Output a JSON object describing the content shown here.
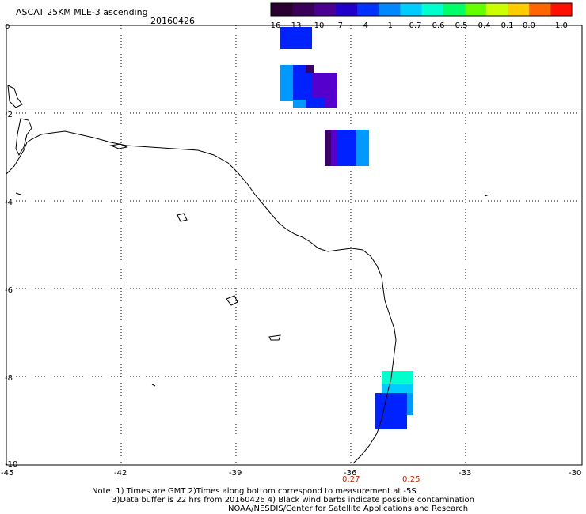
{
  "header": {
    "title": "ASCAT 25KM MLE-3 ascending",
    "date": "20160426"
  },
  "colorbar": {
    "labels": [
      "-16",
      "-13",
      "-10",
      "-7",
      "-4",
      "-1",
      "-0.7",
      "-0.6",
      "-0.5",
      "-0.4",
      "-0.1",
      "0.0",
      "1.0"
    ],
    "colors": [
      "#2a0033",
      "#3a005a",
      "#4a0090",
      "#2200cc",
      "#0033ff",
      "#0088ff",
      "#00ccff",
      "#00ffcc",
      "#00ff66",
      "#66ff00",
      "#ccff00",
      "#ffcc00",
      "#ff6600",
      "#ff1100"
    ]
  },
  "axes": {
    "x_ticks": [
      "-45",
      "-42",
      "-39",
      "-36",
      "-33",
      "-30"
    ],
    "y_ticks": [
      "0",
      "-2",
      "-4",
      "-6",
      "-8",
      "-10"
    ]
  },
  "time_labels": {
    "left": "0:27",
    "right": "0:25",
    "color": "#cc2200"
  },
  "notes": {
    "line1": "Note: 1) Times are GMT 2)Times along bottom correspond to measurement at -5S",
    "line2": "3)Data buffer is 22 hrs from 20160426 4) Black wind barbs indicate possible contamination",
    "line3": "NOAA/NESDIS/Center for Satellite Applications and Research"
  },
  "swath_colors": {
    "light_blue": "#0099ff",
    "blue": "#0022ff",
    "dark_violet": "#3a0066",
    "violet": "#5500cc",
    "cyan": "#00ccff",
    "teal": "#00ffcc"
  }
}
